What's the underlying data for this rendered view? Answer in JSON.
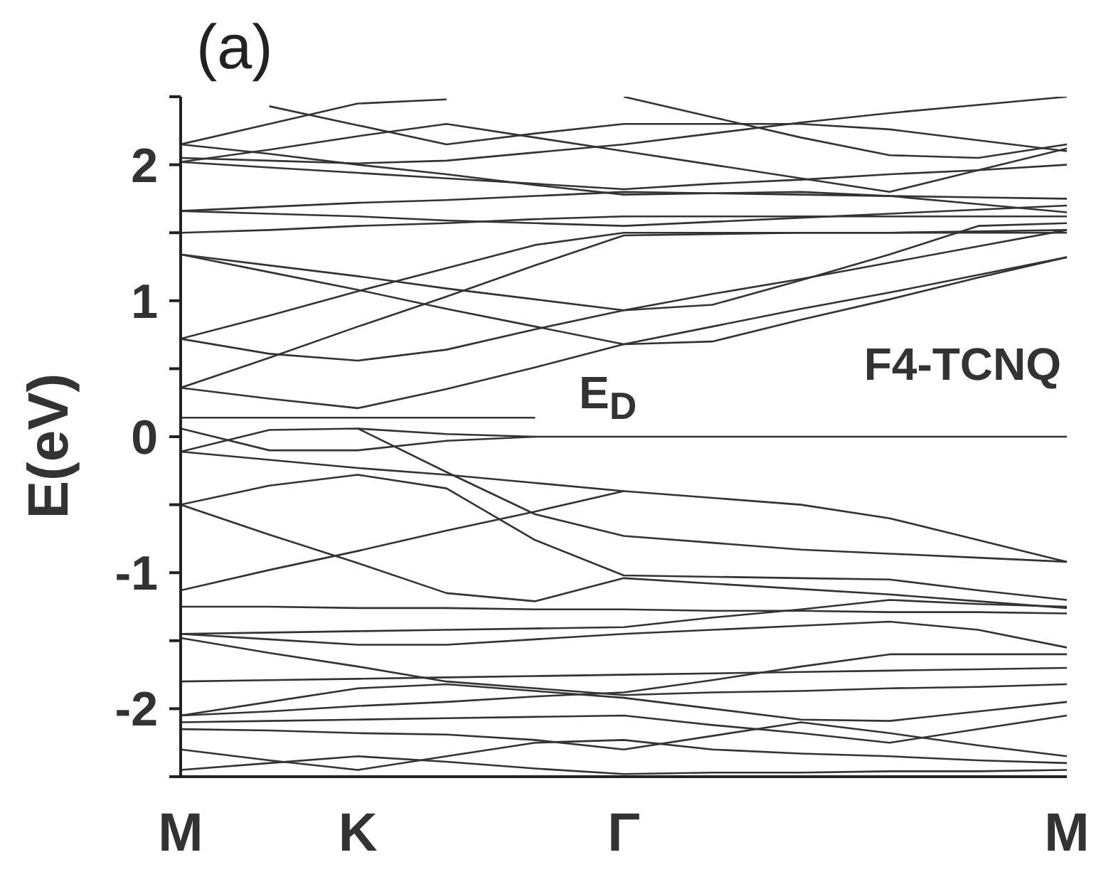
{
  "chart_data": {
    "type": "line",
    "title": "(a)",
    "ylabel": "E(eV)",
    "categories": [
      "M",
      null,
      "K",
      null,
      null,
      "Γ",
      null,
      null,
      null,
      null,
      "M"
    ],
    "ylim": [
      -2.5,
      2.5
    ],
    "yticks": [
      {
        "value": -2.5,
        "label": null
      },
      -2,
      {
        "value": -1.5,
        "label": null
      },
      -1,
      {
        "value": -0.5,
        "label": null
      },
      0,
      {
        "value": 0.5,
        "label": null
      },
      1,
      {
        "value": 1.5,
        "label": null
      },
      2,
      {
        "value": 2.5,
        "label": null
      }
    ],
    "annotations": [
      "E$_{D}$",
      "F4-TCNQ"
    ],
    "series": [
      {
        "color": "#333333",
        "values": [
          0.14,
          0.14,
          0.14,
          0.14,
          0.14,
          null,
          null,
          null,
          null,
          null,
          null
        ]
      },
      {
        "color": "#333333",
        "values": [
          0.06,
          -0.1,
          -0.1,
          -0.03,
          0,
          0,
          0,
          0,
          0,
          0,
          0
        ]
      },
      {
        "color": "#333333",
        "values": [
          -0.11,
          0.05,
          0.06,
          0.02,
          0,
          null,
          null,
          null,
          null,
          null,
          null
        ]
      },
      {
        "color": "#333333",
        "values": [
          0.36,
          0.28,
          0.21,
          0.35,
          0.51,
          0.68,
          0.7,
          0.86,
          1.01,
          1.17,
          1.32
        ]
      },
      {
        "color": "#333333",
        "values": [
          0.72,
          0.61,
          0.56,
          0.64,
          0.79,
          0.93,
          0.97,
          1.15,
          1.34,
          1.55,
          1.57
        ]
      },
      {
        "color": "#333333",
        "values": [
          0.36,
          0.58,
          0.81,
          1.03,
          1.26,
          1.48,
          1.49,
          1.5,
          1.5,
          1.51,
          1.52
        ]
      },
      {
        "color": "#333333",
        "values": [
          0.72,
          0.89,
          1.07,
          1.24,
          1.41,
          1.5,
          1.5,
          1.5,
          1.5,
          1.5,
          1.5
        ]
      },
      {
        "color": "#333333",
        "values": [
          1.34,
          1.26,
          1.18,
          1.09,
          1.01,
          0.93,
          1.05,
          1.16,
          1.28,
          1.4,
          1.52
        ]
      },
      {
        "color": "#333333",
        "values": [
          1.34,
          1.21,
          1.08,
          0.94,
          0.81,
          0.68,
          0.81,
          0.94,
          1.06,
          1.19,
          1.32
        ]
      },
      {
        "color": "#333333",
        "values": [
          1.66,
          1.64,
          1.62,
          1.59,
          1.57,
          1.55,
          1.58,
          1.61,
          1.64,
          1.67,
          1.7
        ]
      },
      {
        "color": "#333333",
        "values": [
          1.66,
          1.69,
          1.72,
          1.74,
          1.77,
          1.8,
          1.79,
          1.78,
          1.77,
          1.76,
          1.75
        ]
      },
      {
        "color": "#333333",
        "values": [
          1.5,
          1.52,
          1.55,
          1.57,
          1.6,
          1.62,
          1.62,
          1.62,
          1.62,
          1.62,
          1.62
        ]
      },
      {
        "color": "#333333",
        "values": [
          2.02,
          1.98,
          1.94,
          1.9,
          1.86,
          1.82,
          1.86,
          1.89,
          1.93,
          1.96,
          2
        ]
      },
      {
        "color": "#333333",
        "values": [
          2.02,
          2.11,
          2.21,
          2.3,
          2.2,
          2.1,
          2,
          1.9,
          1.8,
          1.96,
          2.12
        ]
      },
      {
        "color": "#333333",
        "values": [
          2.15,
          2.3,
          2.45,
          2.48,
          null,
          null,
          null,
          null,
          null,
          null,
          null
        ]
      },
      {
        "color": "#333333",
        "values": [
          2.15,
          2.08,
          2,
          1.93,
          1.85,
          1.78,
          1.79,
          1.8,
          1.77,
          1.71,
          1.65
        ]
      },
      {
        "color": "#333333",
        "values": [
          2.05,
          2.03,
          2.01,
          2.03,
          2.09,
          2.15,
          2.23,
          2.31,
          2.38,
          2.44,
          2.5
        ]
      },
      {
        "color": "#333333",
        "values": [
          null,
          2.43,
          2.29,
          2.15,
          2.23,
          2.3,
          2.3,
          2.3,
          2.26,
          2.18,
          2.1
        ]
      },
      {
        "color": "#333333",
        "values": [
          null,
          null,
          null,
          null,
          null,
          2.5,
          2.35,
          2.2,
          2.07,
          2.05,
          2.15
        ]
      },
      {
        "color": "#333333",
        "values": [
          -0.5,
          -0.36,
          -0.28,
          -0.38,
          -0.76,
          -1.02,
          -1.03,
          -1.04,
          -1.05,
          -1.13,
          -1.2
        ]
      },
      {
        "color": "#333333",
        "values": [
          -0.5,
          -0.72,
          -0.93,
          -1.15,
          -1.21,
          -1.04,
          -1.08,
          -1.12,
          -1.16,
          -1.21,
          -1.26
        ]
      },
      {
        "color": "#333333",
        "values": [
          -0.11,
          -0.17,
          -0.23,
          -0.28,
          -0.34,
          -0.4,
          -0.45,
          -0.5,
          -0.6,
          -0.76,
          -0.92
        ]
      },
      {
        "color": "#333333",
        "values": [
          -1.13,
          -0.98,
          -0.84,
          -0.69,
          -0.55,
          -0.4,
          null,
          null,
          null,
          null,
          null
        ]
      },
      {
        "color": "#333333",
        "values": [
          null,
          null,
          0.06,
          -0.26,
          -0.57,
          -0.73,
          -0.78,
          -0.83,
          -0.86,
          -0.89,
          -0.92
        ]
      },
      {
        "color": "#333333",
        "values": [
          -1.25,
          -1.25,
          -1.26,
          -1.26,
          -1.27,
          -1.27,
          -1.28,
          -1.28,
          -1.29,
          -1.29,
          -1.3
        ]
      },
      {
        "color": "#333333",
        "values": [
          -1.45,
          -1.44,
          -1.43,
          -1.42,
          -1.41,
          -1.4,
          -1.33,
          -1.27,
          -1.2,
          -1.23,
          -1.25
        ]
      },
      {
        "color": "#333333",
        "values": [
          -1.45,
          -1.49,
          -1.53,
          -1.53,
          -1.49,
          -1.45,
          -1.42,
          -1.39,
          -1.36,
          -1.42,
          -1.55
        ]
      },
      {
        "color": "#333333",
        "values": [
          -1.48,
          -1.59,
          -1.69,
          -1.8,
          -1.85,
          -1.9,
          -1.88,
          -1.87,
          -1.85,
          -1.84,
          -1.82
        ]
      },
      {
        "color": "#333333",
        "values": [
          -1.8,
          -1.79,
          -1.78,
          -1.77,
          -1.76,
          -1.75,
          -1.74,
          -1.73,
          -1.72,
          -1.71,
          -1.7
        ]
      },
      {
        "color": "#333333",
        "values": [
          -2.05,
          -2.02,
          -1.98,
          -1.95,
          -1.91,
          -1.88,
          -1.79,
          -1.69,
          -1.6,
          -1.6,
          -1.6
        ]
      },
      {
        "color": "#333333",
        "values": [
          -2.05,
          -1.95,
          -1.85,
          -1.82,
          -1.87,
          -1.92,
          -2,
          -2.08,
          -2.09,
          -2.02,
          -1.95
        ]
      },
      {
        "color": "#333333",
        "values": [
          -2.1,
          -2.09,
          -2.08,
          -2.07,
          -2.06,
          -2.05,
          -2.12,
          -2.18,
          -2.25,
          -2.15,
          -2.05
        ]
      },
      {
        "color": "#333333",
        "values": [
          -2.15,
          -2.16,
          -2.18,
          -2.19,
          -2.23,
          -2.3,
          -2.2,
          -2.1,
          -2.18,
          -2.27,
          -2.35
        ]
      },
      {
        "color": "#333333",
        "values": [
          -2.3,
          -2.38,
          -2.45,
          -2.35,
          -2.25,
          -2.23,
          -2.3,
          -2.33,
          -2.35,
          -2.38,
          -2.4
        ]
      },
      {
        "color": "#333333",
        "values": [
          -2.45,
          -2.4,
          -2.35,
          -2.39,
          -2.44,
          -2.48,
          -2.47,
          -2.47,
          -2.46,
          -2.46,
          -2.45
        ]
      }
    ]
  }
}
